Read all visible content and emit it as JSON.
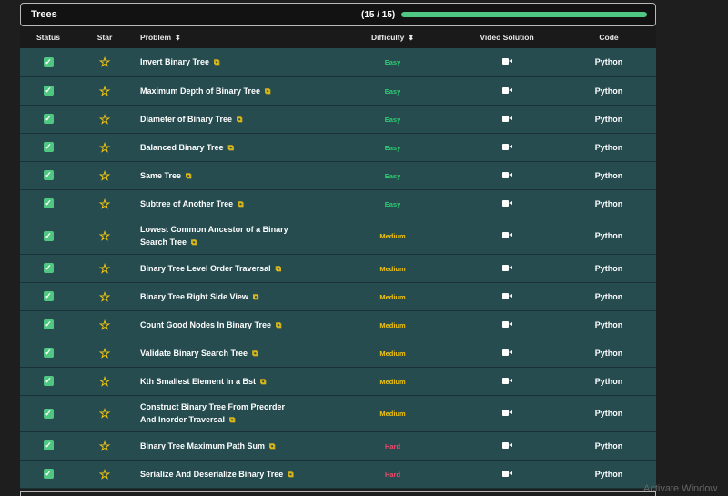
{
  "section": {
    "title": "Trees",
    "progress_text": "(15 / 15)",
    "progress": 1.0
  },
  "columns": {
    "status": "Status",
    "star": "Star",
    "problem": "Problem",
    "difficulty": "Difficulty",
    "video": "Video Solution",
    "code": "Code"
  },
  "sort_icon": "⬍",
  "rows": [
    {
      "problem": "Invert Binary Tree",
      "difficulty": "Easy",
      "code": "Python"
    },
    {
      "problem": "Maximum Depth of Binary Tree",
      "difficulty": "Easy",
      "code": "Python"
    },
    {
      "problem": "Diameter of Binary Tree",
      "difficulty": "Easy",
      "code": "Python"
    },
    {
      "problem": "Balanced Binary Tree",
      "difficulty": "Easy",
      "code": "Python"
    },
    {
      "problem": "Same Tree",
      "difficulty": "Easy",
      "code": "Python"
    },
    {
      "problem": "Subtree of Another Tree",
      "difficulty": "Easy",
      "code": "Python"
    },
    {
      "problem": "Lowest Common Ancestor of a Binary Search Tree",
      "difficulty": "Medium",
      "code": "Python",
      "tall": true
    },
    {
      "problem": "Binary Tree Level Order Traversal",
      "difficulty": "Medium",
      "code": "Python"
    },
    {
      "problem": "Binary Tree Right Side View",
      "difficulty": "Medium",
      "code": "Python"
    },
    {
      "problem": "Count Good Nodes In Binary Tree",
      "difficulty": "Medium",
      "code": "Python"
    },
    {
      "problem": "Validate Binary Search Tree",
      "difficulty": "Medium",
      "code": "Python"
    },
    {
      "problem": "Kth Smallest Element In a Bst",
      "difficulty": "Medium",
      "code": "Python"
    },
    {
      "problem": "Construct Binary Tree From Preorder And Inorder Traversal",
      "difficulty": "Medium",
      "code": "Python",
      "tall": true
    },
    {
      "problem": "Binary Tree Maximum Path Sum",
      "difficulty": "Hard",
      "code": "Python"
    },
    {
      "problem": "Serialize And Deserialize Binary Tree",
      "difficulty": "Hard",
      "code": "Python"
    }
  ],
  "watermark": "Activate Window",
  "colors": {
    "accent": "#4fc782",
    "row_bg": "#264c50",
    "easy": "#2ecc71",
    "medium": "#f1c40f",
    "hard": "#e74c6c"
  }
}
